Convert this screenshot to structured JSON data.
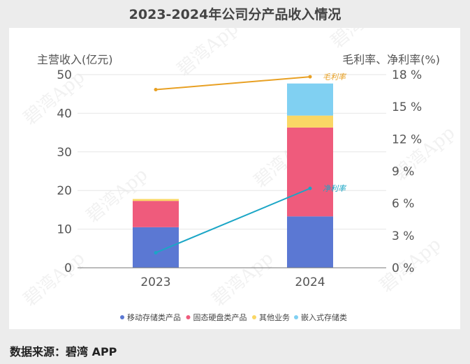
{
  "page_title": "2023-2024年公司分产品收入情况",
  "source_label": "数据来源：碧湾 APP",
  "watermark_text": "碧湾App",
  "colors": {
    "mobile_storage": "#5b78d3",
    "ssd": "#ef5b7c",
    "other": "#fad765",
    "embedded": "#80d0f2",
    "gross_margin": "#e8a023",
    "net_margin": "#1ba6c6"
  },
  "chart_data": {
    "type": "bar",
    "stacked": true,
    "title": "2023-2024年公司分产品收入情况",
    "categories": [
      "2023",
      "2024"
    ],
    "ylabel_left": "主营收入(亿元)",
    "ylabel_right": "毛利率、净利率(%)",
    "ylim_left": [
      0,
      50
    ],
    "ylim_right": [
      0,
      18
    ],
    "yticks_left": [
      0,
      10,
      20,
      30,
      40,
      50
    ],
    "yticks_right": [
      0,
      3,
      6,
      9,
      12,
      15,
      18
    ],
    "yticks_right_labels": [
      "0 %",
      "3 %",
      "6 %",
      "9 %",
      "12 %",
      "15 %",
      "18 %"
    ],
    "series": [
      {
        "name": "移动存储类产品",
        "values": [
          10.5,
          13.3
        ]
      },
      {
        "name": "固态硬盘类产品",
        "values": [
          6.8,
          23.0
        ]
      },
      {
        "name": "其他业务",
        "values": [
          0.5,
          3.1
        ]
      },
      {
        "name": "嵌入式存储类",
        "values": [
          0.0,
          8.3
        ]
      }
    ],
    "lines": [
      {
        "name": "毛利率",
        "values": [
          16.6,
          17.8
        ],
        "axis": "right"
      },
      {
        "name": "净利率",
        "values": [
          1.4,
          7.4
        ],
        "axis": "right"
      }
    ],
    "legend_position": "bottom",
    "grid": true
  }
}
